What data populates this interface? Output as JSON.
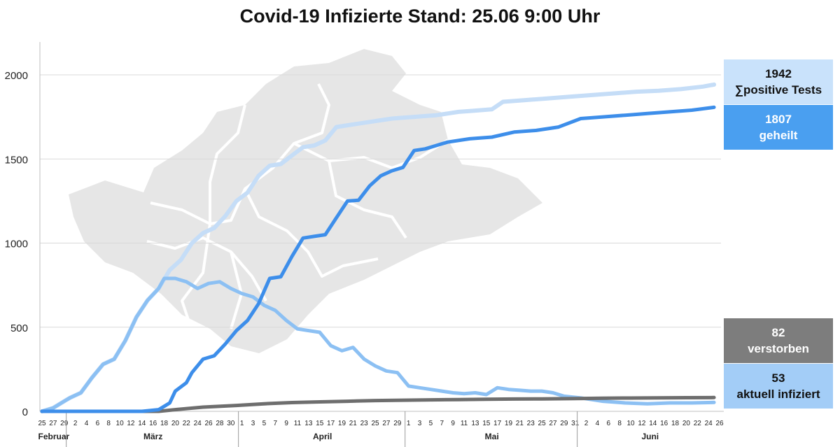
{
  "title": "Covid-19 Infizierte Stand: 25.06 9:00 Uhr",
  "callouts": {
    "tests": {
      "value": "1942",
      "label": "∑positive Tests"
    },
    "geheilt": {
      "value": "1807",
      "label": "geheilt"
    },
    "verstorben": {
      "value": "82",
      "label": "verstorben"
    },
    "aktuell": {
      "value": "53",
      "label": "aktuell infiziert"
    }
  },
  "colors": {
    "tests": "#c5ddf7",
    "geheilt": "#3d8eea",
    "aktuell": "#8cc0f3",
    "verstorben": "#6e6e6e",
    "map": "#e6e6e6",
    "grid": "#d9d9d9"
  },
  "chart_data": {
    "type": "line",
    "title": "Covid-19 Infizierte Stand: 25.06 9:00 Uhr",
    "xlabel": "",
    "ylabel": "",
    "ylim": [
      0,
      2000
    ],
    "yticks": [
      0,
      500,
      1000,
      1500,
      2000
    ],
    "xrange": [
      "2020-02-25",
      "2020-06-26"
    ],
    "grid": true,
    "months": [
      {
        "label": "Februar",
        "start": "2020-02-25",
        "end": "2020-02-29"
      },
      {
        "label": "März",
        "start": "2020-03-01",
        "end": "2020-03-31"
      },
      {
        "label": "April",
        "start": "2020-04-01",
        "end": "2020-04-30"
      },
      {
        "label": "Mai",
        "start": "2020-05-01",
        "end": "2020-05-31"
      },
      {
        "label": "Juni",
        "start": "2020-06-01",
        "end": "2020-06-26"
      }
    ],
    "xtick_labels": [
      {
        "date": "2020-02-25",
        "label": "25"
      },
      {
        "date": "2020-02-27",
        "label": "27"
      },
      {
        "date": "2020-02-29",
        "label": "29"
      },
      {
        "date": "2020-03-02",
        "label": "2"
      },
      {
        "date": "2020-03-04",
        "label": "4"
      },
      {
        "date": "2020-03-06",
        "label": "6"
      },
      {
        "date": "2020-03-08",
        "label": "8"
      },
      {
        "date": "2020-03-10",
        "label": "10"
      },
      {
        "date": "2020-03-12",
        "label": "12"
      },
      {
        "date": "2020-03-14",
        "label": "14"
      },
      {
        "date": "2020-03-16",
        "label": "16"
      },
      {
        "date": "2020-03-18",
        "label": "18"
      },
      {
        "date": "2020-03-20",
        "label": "20"
      },
      {
        "date": "2020-03-22",
        "label": "22"
      },
      {
        "date": "2020-03-24",
        "label": "24"
      },
      {
        "date": "2020-03-26",
        "label": "26"
      },
      {
        "date": "2020-03-28",
        "label": "28"
      },
      {
        "date": "2020-03-30",
        "label": "30"
      },
      {
        "date": "2020-04-01",
        "label": "1"
      },
      {
        "date": "2020-04-03",
        "label": "3"
      },
      {
        "date": "2020-04-05",
        "label": "5"
      },
      {
        "date": "2020-04-07",
        "label": "7"
      },
      {
        "date": "2020-04-09",
        "label": "9"
      },
      {
        "date": "2020-04-11",
        "label": "11"
      },
      {
        "date": "2020-04-13",
        "label": "13"
      },
      {
        "date": "2020-04-15",
        "label": "15"
      },
      {
        "date": "2020-04-17",
        "label": "17"
      },
      {
        "date": "2020-04-19",
        "label": "19"
      },
      {
        "date": "2020-04-21",
        "label": "21"
      },
      {
        "date": "2020-04-23",
        "label": "23"
      },
      {
        "date": "2020-04-25",
        "label": "25"
      },
      {
        "date": "2020-04-27",
        "label": "27"
      },
      {
        "date": "2020-04-29",
        "label": "29"
      },
      {
        "date": "2020-05-01",
        "label": "1"
      },
      {
        "date": "2020-05-03",
        "label": "3"
      },
      {
        "date": "2020-05-05",
        "label": "5"
      },
      {
        "date": "2020-05-07",
        "label": "7"
      },
      {
        "date": "2020-05-09",
        "label": "9"
      },
      {
        "date": "2020-05-11",
        "label": "11"
      },
      {
        "date": "2020-05-13",
        "label": "13"
      },
      {
        "date": "2020-05-15",
        "label": "15"
      },
      {
        "date": "2020-05-17",
        "label": "17"
      },
      {
        "date": "2020-05-19",
        "label": "19"
      },
      {
        "date": "2020-05-21",
        "label": "21"
      },
      {
        "date": "2020-05-23",
        "label": "23"
      },
      {
        "date": "2020-05-25",
        "label": "25"
      },
      {
        "date": "2020-05-27",
        "label": "27"
      },
      {
        "date": "2020-05-29",
        "label": "29"
      },
      {
        "date": "2020-05-31",
        "label": "31"
      },
      {
        "date": "2020-06-02",
        "label": "2"
      },
      {
        "date": "2020-06-04",
        "label": "4"
      },
      {
        "date": "2020-06-06",
        "label": "6"
      },
      {
        "date": "2020-06-08",
        "label": "8"
      },
      {
        "date": "2020-06-10",
        "label": "10"
      },
      {
        "date": "2020-06-12",
        "label": "12"
      },
      {
        "date": "2020-06-14",
        "label": "14"
      },
      {
        "date": "2020-06-16",
        "label": "16"
      },
      {
        "date": "2020-06-18",
        "label": "18"
      },
      {
        "date": "2020-06-20",
        "label": "20"
      },
      {
        "date": "2020-06-22",
        "label": "22"
      },
      {
        "date": "2020-06-24",
        "label": "24"
      },
      {
        "date": "2020-06-26",
        "label": "26"
      }
    ],
    "series": [
      {
        "name": "∑positive Tests",
        "color": "#c5ddf7",
        "x": [
          "2020-02-25",
          "2020-02-27",
          "2020-02-29",
          "2020-03-01",
          "2020-03-03",
          "2020-03-05",
          "2020-03-07",
          "2020-03-09",
          "2020-03-11",
          "2020-03-13",
          "2020-03-15",
          "2020-03-17",
          "2020-03-19",
          "2020-03-21",
          "2020-03-23",
          "2020-03-25",
          "2020-03-27",
          "2020-03-29",
          "2020-03-31",
          "2020-04-02",
          "2020-04-04",
          "2020-04-06",
          "2020-04-08",
          "2020-04-10",
          "2020-04-12",
          "2020-04-14",
          "2020-04-16",
          "2020-04-18",
          "2020-04-20",
          "2020-04-22",
          "2020-04-24",
          "2020-04-26",
          "2020-04-28",
          "2020-04-30",
          "2020-05-02",
          "2020-05-04",
          "2020-05-06",
          "2020-05-08",
          "2020-05-10",
          "2020-05-12",
          "2020-05-14",
          "2020-05-16",
          "2020-05-18",
          "2020-05-22",
          "2020-05-26",
          "2020-05-30",
          "2020-06-03",
          "2020-06-07",
          "2020-06-11",
          "2020-06-15",
          "2020-06-19",
          "2020-06-23",
          "2020-06-25"
        ],
        "y": [
          0,
          20,
          60,
          80,
          110,
          200,
          280,
          310,
          420,
          560,
          660,
          730,
          840,
          900,
          1000,
          1060,
          1090,
          1160,
          1250,
          1300,
          1400,
          1460,
          1470,
          1520,
          1570,
          1580,
          1610,
          1690,
          1700,
          1710,
          1720,
          1730,
          1740,
          1745,
          1750,
          1755,
          1760,
          1770,
          1780,
          1785,
          1790,
          1795,
          1840,
          1850,
          1860,
          1870,
          1880,
          1890,
          1900,
          1905,
          1915,
          1930,
          1942
        ]
      },
      {
        "name": "geheilt",
        "color": "#3d8eea",
        "x": [
          "2020-02-25",
          "2020-03-14",
          "2020-03-17",
          "2020-03-18",
          "2020-03-19",
          "2020-03-20",
          "2020-03-22",
          "2020-03-23",
          "2020-03-25",
          "2020-03-27",
          "2020-03-29",
          "2020-03-31",
          "2020-04-02",
          "2020-04-04",
          "2020-04-06",
          "2020-04-08",
          "2020-04-10",
          "2020-04-12",
          "2020-04-14",
          "2020-04-16",
          "2020-04-18",
          "2020-04-20",
          "2020-04-22",
          "2020-04-24",
          "2020-04-26",
          "2020-04-28",
          "2020-04-30",
          "2020-05-02",
          "2020-05-04",
          "2020-05-06",
          "2020-05-08",
          "2020-05-12",
          "2020-05-16",
          "2020-05-20",
          "2020-05-24",
          "2020-05-28",
          "2020-06-01",
          "2020-06-05",
          "2020-06-09",
          "2020-06-13",
          "2020-06-17",
          "2020-06-21",
          "2020-06-25"
        ],
        "y": [
          0,
          0,
          10,
          30,
          50,
          120,
          170,
          230,
          310,
          330,
          400,
          480,
          540,
          640,
          790,
          800,
          920,
          1030,
          1040,
          1050,
          1150,
          1250,
          1255,
          1340,
          1400,
          1430,
          1450,
          1550,
          1560,
          1580,
          1600,
          1620,
          1630,
          1660,
          1670,
          1690,
          1740,
          1750,
          1760,
          1770,
          1780,
          1790,
          1807
        ]
      },
      {
        "name": "aktuell infiziert",
        "color": "#8cc0f3",
        "x": [
          "2020-02-25",
          "2020-02-27",
          "2020-02-29",
          "2020-03-01",
          "2020-03-03",
          "2020-03-05",
          "2020-03-07",
          "2020-03-09",
          "2020-03-11",
          "2020-03-13",
          "2020-03-15",
          "2020-03-17",
          "2020-03-18",
          "2020-03-20",
          "2020-03-22",
          "2020-03-24",
          "2020-03-26",
          "2020-03-28",
          "2020-03-30",
          "2020-04-01",
          "2020-04-03",
          "2020-04-05",
          "2020-04-07",
          "2020-04-09",
          "2020-04-11",
          "2020-04-13",
          "2020-04-15",
          "2020-04-17",
          "2020-04-19",
          "2020-04-21",
          "2020-04-23",
          "2020-04-25",
          "2020-04-27",
          "2020-04-29",
          "2020-05-01",
          "2020-05-03",
          "2020-05-05",
          "2020-05-07",
          "2020-05-09",
          "2020-05-11",
          "2020-05-13",
          "2020-05-15",
          "2020-05-17",
          "2020-05-19",
          "2020-05-21",
          "2020-05-23",
          "2020-05-25",
          "2020-05-27",
          "2020-05-29",
          "2020-06-01",
          "2020-06-05",
          "2020-06-09",
          "2020-06-13",
          "2020-06-17",
          "2020-06-21",
          "2020-06-25"
        ],
        "y": [
          0,
          20,
          60,
          80,
          110,
          200,
          280,
          310,
          420,
          560,
          660,
          730,
          790,
          790,
          770,
          730,
          760,
          770,
          730,
          700,
          680,
          630,
          600,
          540,
          490,
          480,
          470,
          390,
          360,
          380,
          310,
          270,
          240,
          230,
          150,
          140,
          130,
          120,
          110,
          105,
          110,
          100,
          140,
          130,
          125,
          120,
          120,
          110,
          90,
          80,
          60,
          50,
          45,
          50,
          50,
          53
        ]
      },
      {
        "name": "verstorben",
        "color": "#6e6e6e",
        "x": [
          "2020-02-25",
          "2020-03-17",
          "2020-03-20",
          "2020-03-25",
          "2020-03-31",
          "2020-04-05",
          "2020-04-10",
          "2020-04-15",
          "2020-04-20",
          "2020-04-25",
          "2020-04-30",
          "2020-05-05",
          "2020-05-10",
          "2020-05-15",
          "2020-05-20",
          "2020-05-25",
          "2020-05-31",
          "2020-06-05",
          "2020-06-10",
          "2020-06-15",
          "2020-06-20",
          "2020-06-25"
        ],
        "y": [
          0,
          0,
          10,
          25,
          35,
          45,
          52,
          56,
          60,
          64,
          66,
          68,
          70,
          72,
          73,
          74,
          76,
          78,
          79,
          80,
          81,
          82
        ]
      }
    ]
  }
}
